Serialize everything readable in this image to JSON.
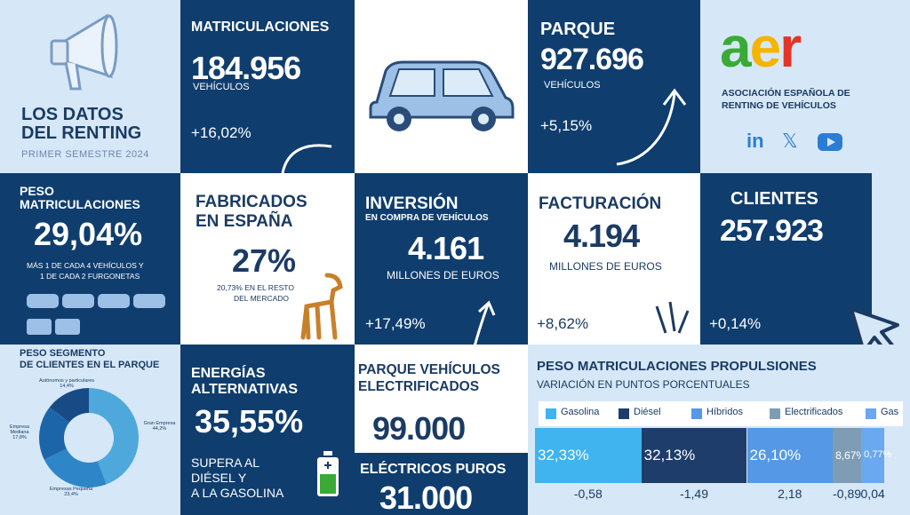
{
  "header": {
    "title_line1": "LOS DATOS",
    "title_line2": "DEL RENTING",
    "subtitle": "PRIMER SEMESTRE 2024"
  },
  "matriculaciones": {
    "title": "MATRICULACIONES",
    "value": "184.956",
    "unit": "VEHÍCULOS",
    "change": "+16,02%"
  },
  "parque": {
    "title": "PARQUE",
    "value": "927.696",
    "unit": "VEHÍCULOS",
    "change": "+5,15%"
  },
  "logo": {
    "letters": [
      "a",
      "e",
      "r"
    ],
    "letter_colors": [
      "#3aaa35",
      "#f4b400",
      "#e5332a"
    ],
    "name_line1": "ASOCIACIÓN ESPAÑOLA DE",
    "name_line2": "RENTING DE VEHÍCULOS"
  },
  "social": {
    "icons": [
      "linkedin-icon",
      "x-icon",
      "youtube-icon"
    ],
    "labels": [
      "in",
      "𝕏",
      ""
    ]
  },
  "peso_matriculaciones": {
    "title_line1": "PESO",
    "title_line2": "MATRICULACIONES",
    "value": "29,04%",
    "note_line1": "MÁS 1 DE CADA 4 VEHÍCULOS Y",
    "note_line2": "1 DE CADA 2 FURGONETAS"
  },
  "fabricados": {
    "title_line1": "FABRICADOS",
    "title_line2": "EN ESPAÑA",
    "value": "27%",
    "note_line1": "20,73% EN EL RESTO",
    "note_line2": "DEL MERCADO"
  },
  "inversion": {
    "title": "INVERSIÓN",
    "subtitle": "EN COMPRA DE VEHÍCULOS",
    "value": "4.161",
    "unit": "MILLONES DE EUROS",
    "change": "+17,49%"
  },
  "facturacion": {
    "title": "FACTURACIÓN",
    "value": "4.194",
    "unit": "MILLONES DE EUROS",
    "change": "+8,62%"
  },
  "clientes": {
    "title": "CLIENTES",
    "value": "257.923",
    "change": "+0,14%"
  },
  "segmento": {
    "title_line1": "PESO SEGMENTO",
    "title_line2": "DE CLIENTES EN EL PARQUE",
    "slices": [
      {
        "name": "Gran Empresa",
        "pct_label": "44,2%",
        "value": 44.2,
        "color": "#4fa8dc"
      },
      {
        "name": "Empresas Pequeña",
        "pct_label": "23,4%",
        "value": 23.4,
        "color": "#2e86c8"
      },
      {
        "name": "Empresa Mediana",
        "pct_label": "17,8%",
        "value": 17.8,
        "color": "#1c65a8"
      },
      {
        "name": "Autónomos y particulares",
        "pct_label": "14,4%",
        "value": 14.4,
        "color": "#184a86"
      }
    ]
  },
  "energias": {
    "title_line1": "ENERGÍAS",
    "title_line2": "ALTERNATIVAS",
    "value": "35,55%",
    "note_line1": "SUPERA AL",
    "note_line2": "DIÉSEL Y",
    "note_line3": "A LA GASOLINA"
  },
  "electrificados": {
    "title_line1": "PARQUE VEHÍCULOS",
    "title_line2": "ELECTRIFICADOS",
    "value": "99.000"
  },
  "puros": {
    "title": "ELÉCTRICOS PUROS",
    "value": "31.000"
  },
  "chart_data": {
    "type": "bar",
    "title": "PESO MATRICULACIONES PROPULSIONES",
    "subtitle": "VARIACIÓN EN PUNTOS PORCENTUALES",
    "legend_position": "top",
    "series": [
      {
        "name": "Gasolina",
        "share": 32.33,
        "share_label": "32,33%",
        "change_label": "-0,58",
        "color": "#3fb4ee"
      },
      {
        "name": "Diésel",
        "share": 32.13,
        "share_label": "32,13%",
        "change_label": "-1,49",
        "color": "#1e3d6a"
      },
      {
        "name": "Híbridos",
        "share": 26.1,
        "share_label": "26,10%",
        "change_label": "2,18",
        "color": "#5599e6"
      },
      {
        "name": "Electrificados",
        "share": 8.67,
        "share_label": "8,67%",
        "change_label": "-0,89",
        "color": "#7f9cb5"
      },
      {
        "name": "Gas",
        "share": 0.77,
        "share_label": "0,77%",
        "change_label": "0,04",
        "color": "#6aa8f0"
      }
    ]
  }
}
